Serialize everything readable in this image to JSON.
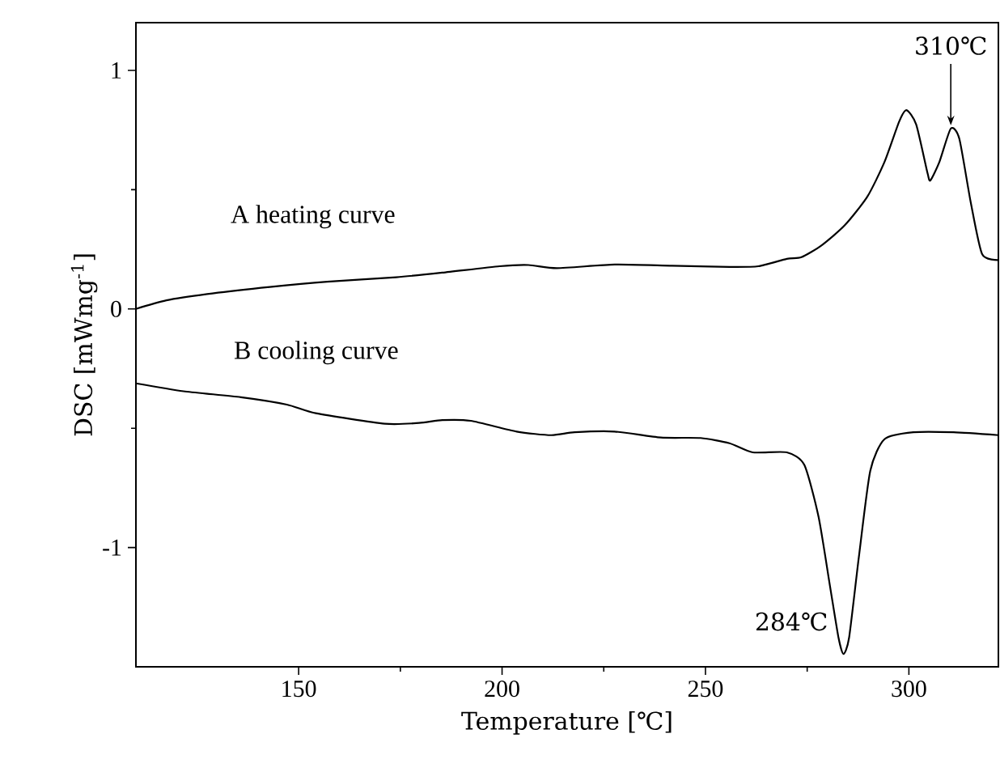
{
  "chart_data": {
    "type": "line",
    "xlabel": "Temperature [℃]",
    "ylabel": "DSC [mWmg$^{-1}$]",
    "xlim": [
      110,
      322
    ],
    "xticks": [
      150,
      200,
      250,
      300
    ],
    "ylim": [
      -1.5,
      1.2
    ],
    "yticks": [
      -1,
      0,
      1
    ],
    "grid": false,
    "legend": false,
    "marker": "none",
    "line_style": "solid",
    "annotations": [
      {
        "text": "310℃",
        "x": 310.3,
        "y": 0.756
      },
      {
        "text": "284℃",
        "x": 283.9,
        "y": -1.446
      }
    ],
    "series": [
      {
        "name": "A heating curve",
        "color": "#000000",
        "x": [
          110,
          117.5,
          128.8,
          142.9,
          157,
          174,
          185.3,
          199.4,
          206.5,
          213.5,
          227.7,
          241.8,
          255.9,
          263,
          270,
          273.6,
          278.5,
          284.2,
          289.8,
          294,
          297.6,
          299.4,
          301.8,
          304.6,
          305.3,
          307.5,
          310.3,
          312.4,
          315.2,
          318,
          322
        ],
        "values": [
          0,
          0.036,
          0.065,
          0.092,
          0.114,
          0.133,
          0.152,
          0.179,
          0.184,
          0.171,
          0.186,
          0.181,
          0.176,
          0.179,
          0.21,
          0.217,
          0.266,
          0.35,
          0.471,
          0.616,
          0.785,
          0.833,
          0.773,
          0.568,
          0.539,
          0.616,
          0.756,
          0.713,
          0.447,
          0.23,
          0.205
        ]
      },
      {
        "name": "B cooling curve",
        "color": "#000000",
        "x": [
          110,
          121.7,
          135.8,
          147.1,
          154.2,
          171.2,
          179.6,
          185.3,
          192.3,
          203.6,
          212.1,
          217.8,
          227.7,
          239,
          248.8,
          255.9,
          261.6,
          270,
          274.3,
          277.8,
          280.6,
          282.7,
          283.9,
          285.3,
          287.7,
          290.5,
          294,
          301.1,
          311,
          322
        ],
        "values": [
          -0.312,
          -0.345,
          -0.37,
          -0.401,
          -0.437,
          -0.481,
          -0.478,
          -0.466,
          -0.469,
          -0.514,
          -0.529,
          -0.517,
          -0.514,
          -0.539,
          -0.541,
          -0.563,
          -0.601,
          -0.601,
          -0.654,
          -0.872,
          -1.161,
          -1.378,
          -1.446,
          -1.378,
          -1.04,
          -0.679,
          -0.546,
          -0.517,
          -0.517,
          -0.529
        ]
      }
    ]
  }
}
